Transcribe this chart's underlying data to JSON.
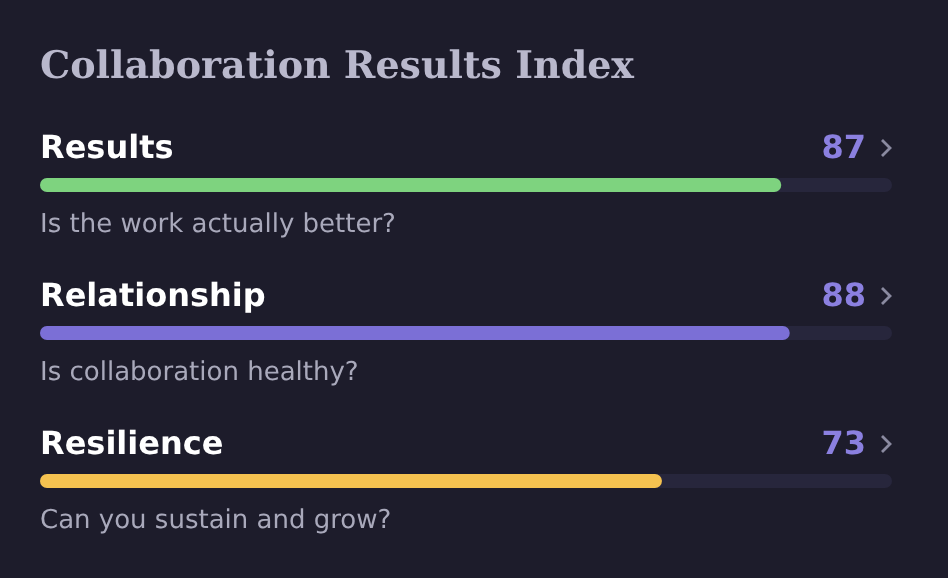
{
  "chart_data": {
    "type": "bar",
    "orientation": "horizontal",
    "title": "Collaboration Results Index",
    "categories": [
      "Results",
      "Relationship",
      "Resilience"
    ],
    "values": [
      87,
      88,
      73
    ],
    "colors": [
      "#7ed37f",
      "#7b6fd6",
      "#f5c250"
    ],
    "xlim": [
      0,
      100
    ],
    "data_labels": true,
    "annotations": [
      "Is the work actually better?",
      "Is collaboration healthy?",
      "Can you sustain and grow?"
    ]
  }
}
